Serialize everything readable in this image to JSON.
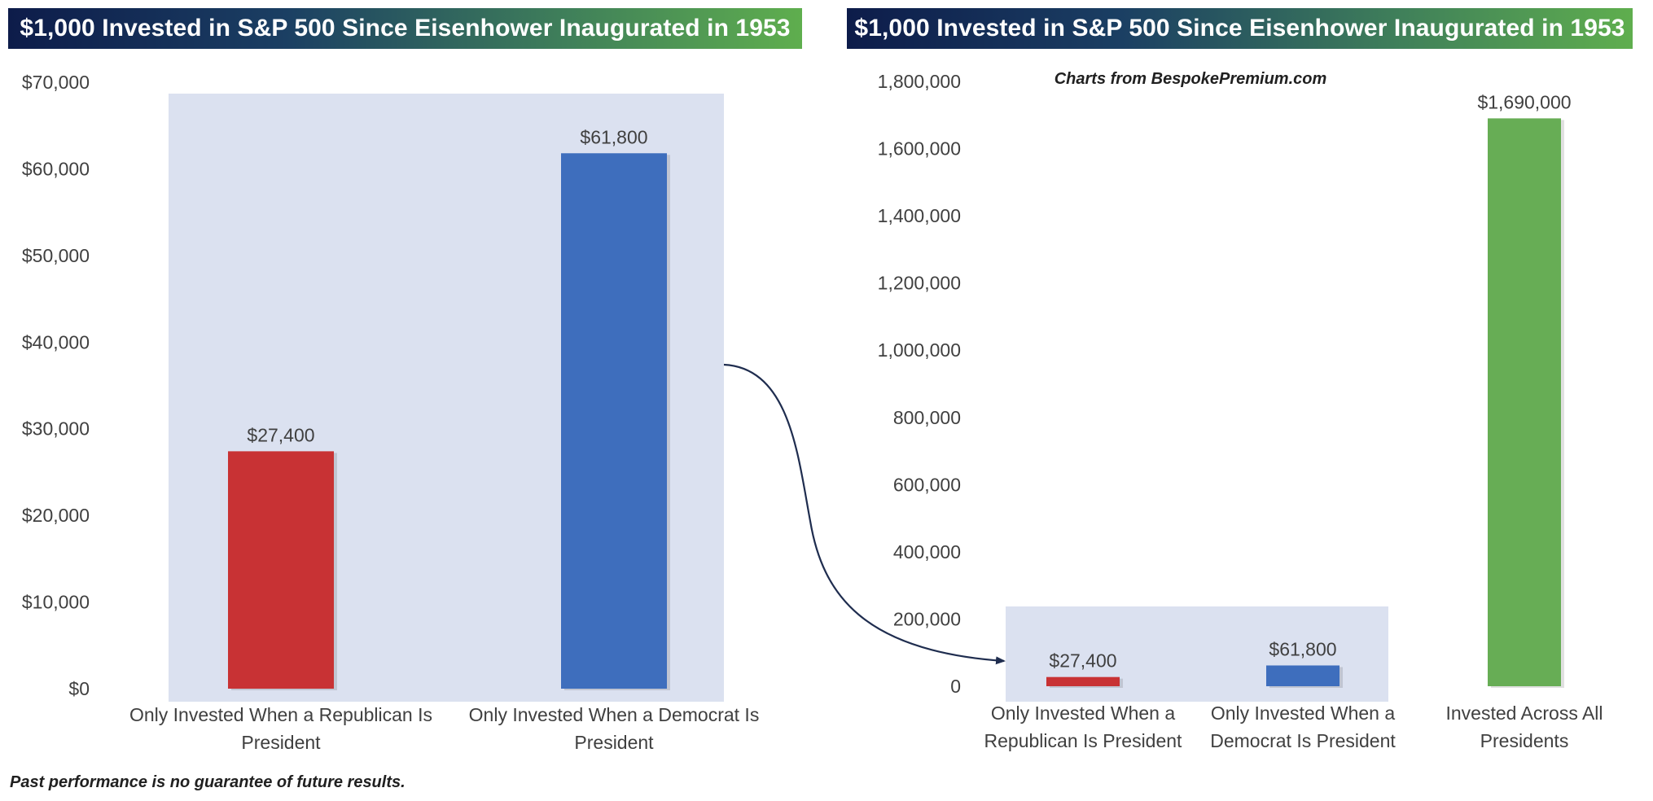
{
  "colors": {
    "title_gradient_start": "#0d1c4a",
    "title_gradient_end": "#5fae4e",
    "republican": "#c83234",
    "democrat": "#3e6ebd",
    "all": "#67ad55",
    "highlight": "#dbe1f0",
    "arrow": "#1f2d4f"
  },
  "footnote": "Past performance is no guarantee of future results.",
  "chart_data": [
    {
      "type": "bar",
      "title": "$1,000 Invested in S&P 500 Since Eisenhower Inaugurated in 1953",
      "categories": [
        [
          "Only Invested When a Republican Is",
          "President"
        ],
        [
          "Only Invested When a Democrat Is",
          "President"
        ]
      ],
      "values": [
        27400,
        61800
      ],
      "data_labels": [
        "$27,400",
        "$61,800"
      ],
      "bar_colors": [
        "#c83234",
        "#3e6ebd"
      ],
      "ylim": [
        0,
        70000
      ],
      "yticks": [
        0,
        10000,
        20000,
        30000,
        40000,
        50000,
        60000,
        70000
      ],
      "ytick_labels": [
        "$0",
        "$10,000",
        "$20,000",
        "$30,000",
        "$40,000",
        "$50,000",
        "$60,000",
        "$70,000"
      ],
      "xlabel": "",
      "ylabel": "",
      "grid": false
    },
    {
      "type": "bar",
      "title": "$1,000 Invested in S&P 500 Since Eisenhower Inaugurated in 1953",
      "annotation": "Charts from BespokePremium.com",
      "categories": [
        [
          "Only Invested When a",
          "Republican Is President"
        ],
        [
          "Only Invested When a",
          "Democrat Is President"
        ],
        [
          "Invested Across All",
          "Presidents"
        ]
      ],
      "values": [
        27400,
        61800,
        1690000
      ],
      "data_labels": [
        "$27,400",
        "$61,800",
        "$1,690,000"
      ],
      "bar_colors": [
        "#c83234",
        "#3e6ebd",
        "#67ad55"
      ],
      "ylim": [
        0,
        1800000
      ],
      "yticks": [
        0,
        200000,
        400000,
        600000,
        800000,
        1000000,
        1200000,
        1400000,
        1600000,
        1800000
      ],
      "ytick_labels": [
        "0",
        "200,000",
        "400,000",
        "600,000",
        "800,000",
        "1,000,000",
        "1,200,000",
        "1,400,000",
        "1,600,000",
        "1,800,000"
      ],
      "xlabel": "",
      "ylabel": "",
      "grid": false
    }
  ]
}
